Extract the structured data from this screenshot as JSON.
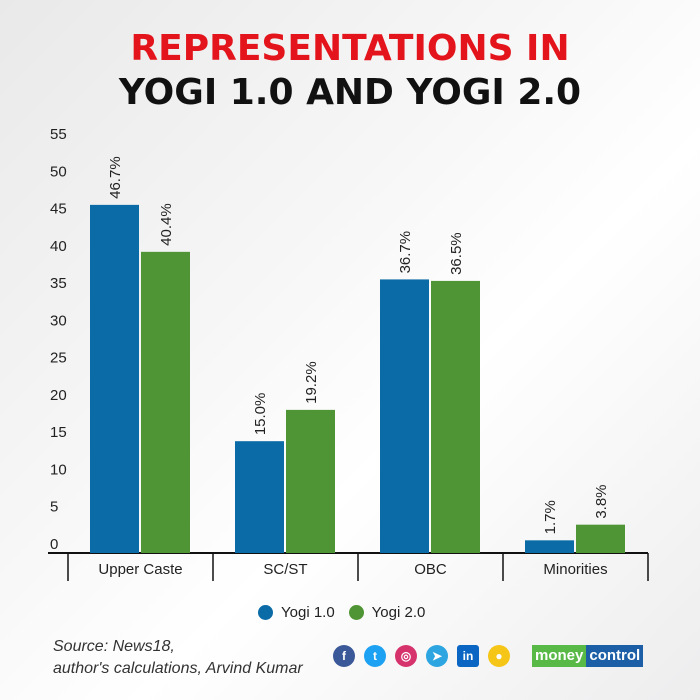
{
  "title_line1": "REPRESENTATIONS IN",
  "title_line2": "YOGI 1.0 AND YOGI 2.0",
  "colors": {
    "yogi1": "#0b6ba6",
    "yogi2": "#4f9535",
    "title_red": "#e3141b"
  },
  "chart_data": {
    "type": "bar",
    "categories": [
      "Upper Caste",
      "SC/ST",
      "OBC",
      "Minorities"
    ],
    "series": [
      {
        "name": "Yogi 1.0",
        "values": [
          46.7,
          15.0,
          36.7,
          1.7
        ],
        "labels": [
          "46.7%",
          "15.0%",
          "36.7%",
          "1.7%"
        ]
      },
      {
        "name": "Yogi 2.0",
        "values": [
          40.4,
          19.2,
          36.5,
          3.8
        ],
        "labels": [
          "40.4%",
          "19.2%",
          "36.5%",
          "3.8%"
        ]
      }
    ],
    "yticks": [
      0,
      5,
      10,
      15,
      20,
      25,
      30,
      35,
      40,
      45,
      50,
      55
    ],
    "ylim": [
      0,
      55
    ],
    "grid": false,
    "legend": "bottom"
  },
  "source_line1": "Source: News18,",
  "source_line2": "author's calculations, Arvind Kumar",
  "social_icons": [
    "facebook-icon",
    "twitter-icon",
    "instagram-icon",
    "telegram-icon",
    "linkedin-icon",
    "koo-icon"
  ],
  "logo": {
    "part1": "money",
    "part2": "control"
  }
}
